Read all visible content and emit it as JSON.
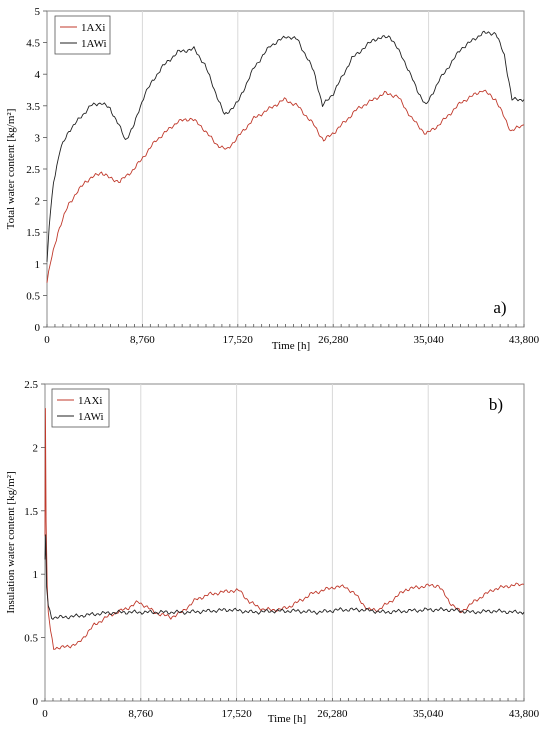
{
  "chart_data": [
    {
      "type": "line",
      "panel_label": "a)",
      "title": "",
      "xlabel": "Time [h]",
      "ylabel": "Total water content [kg/m²]",
      "xlim": [
        0,
        43800
      ],
      "ylim": [
        0,
        5
      ],
      "xticks": [
        0,
        8760,
        17520,
        26280,
        35040,
        43800
      ],
      "xtick_labels": [
        "0",
        "8,760",
        "17,520",
        "26,280",
        "35,040",
        "43,800"
      ],
      "yticks": [
        0,
        0.5,
        1,
        1.5,
        2,
        2.5,
        3,
        3.5,
        4,
        4.5,
        5
      ],
      "ytick_labels": [
        "0",
        "0.5",
        "1",
        "1.5",
        "2",
        "2.5",
        "3",
        "3.5",
        "4",
        "4.5",
        "5"
      ],
      "grid": "vertical",
      "legend_position": "top-left",
      "series": [
        {
          "name": "1AXi",
          "color": "#c0392b",
          "x": [
            0,
            300,
            1000,
            2000,
            3500,
            5000,
            5800,
            6700,
            8000,
            10000,
            12000,
            13300,
            14300,
            15500,
            16500,
            19000,
            21800,
            23000,
            24500,
            25400,
            26500,
            28500,
            31000,
            32200,
            33500,
            34800,
            36000,
            38000,
            40000,
            41200,
            42600,
            43800
          ],
          "y": [
            0.7,
            1.0,
            1.5,
            1.95,
            2.3,
            2.45,
            2.35,
            2.3,
            2.5,
            2.95,
            3.25,
            3.3,
            3.15,
            2.9,
            2.8,
            3.3,
            3.6,
            3.5,
            3.2,
            2.95,
            3.1,
            3.45,
            3.7,
            3.65,
            3.3,
            3.05,
            3.2,
            3.55,
            3.75,
            3.6,
            3.1,
            3.2
          ]
        },
        {
          "name": "1AWi",
          "color": "#222222",
          "x": [
            0,
            200,
            600,
            1200,
            2000,
            3000,
            4000,
            5000,
            5800,
            6600,
            7200,
            8000,
            9000,
            10500,
            12000,
            13500,
            14500,
            15500,
            16300,
            17500,
            19000,
            20500,
            22000,
            23000,
            24500,
            25300,
            26300,
            28000,
            30000,
            31500,
            32700,
            34000,
            34800,
            36000,
            38000,
            40000,
            41200,
            42000,
            42700,
            43800
          ],
          "y": [
            1.0,
            1.6,
            2.3,
            2.8,
            3.1,
            3.3,
            3.5,
            3.55,
            3.45,
            3.2,
            2.95,
            3.2,
            3.7,
            4.1,
            4.35,
            4.4,
            4.15,
            3.7,
            3.35,
            3.55,
            4.1,
            4.45,
            4.6,
            4.55,
            4.05,
            3.5,
            3.7,
            4.25,
            4.55,
            4.6,
            4.25,
            3.75,
            3.5,
            3.9,
            4.4,
            4.65,
            4.65,
            4.3,
            3.6,
            3.6
          ]
        }
      ]
    },
    {
      "type": "line",
      "panel_label": "b)",
      "title": "",
      "xlabel": "Time [h]",
      "ylabel": "Insulation water content [kg/m²]",
      "xlim": [
        0,
        43800
      ],
      "ylim": [
        0,
        2.5
      ],
      "xticks": [
        0,
        8760,
        17520,
        26280,
        35040,
        43800
      ],
      "xtick_labels": [
        "0",
        "8,760",
        "17,520",
        "26,280",
        "35,040",
        "43,800"
      ],
      "yticks": [
        0,
        0.5,
        1,
        1.5,
        2,
        2.5
      ],
      "ytick_labels": [
        "0",
        "0.5",
        "1",
        "1.5",
        "2",
        "2.5"
      ],
      "grid": "vertical",
      "legend_position": "top-left",
      "series": [
        {
          "name": "1AXi",
          "color": "#c0392b",
          "x": [
            0,
            40,
            100,
            200,
            300,
            500,
            800,
            1500,
            3000,
            4500,
            6000,
            7500,
            8500,
            9200,
            10000,
            11500,
            12500,
            13800,
            15000,
            17000,
            17800,
            18700,
            20000,
            21500,
            22500,
            24500,
            26500,
            27500,
            28500,
            29500,
            30500,
            31500,
            33000,
            35000,
            36000,
            37000,
            38000,
            39500,
            41000,
            42500,
            43800
          ],
          "y": [
            1.3,
            2.3,
            1.4,
            0.9,
            0.7,
            0.55,
            0.42,
            0.42,
            0.45,
            0.6,
            0.68,
            0.73,
            0.78,
            0.75,
            0.7,
            0.66,
            0.7,
            0.8,
            0.84,
            0.87,
            0.87,
            0.78,
            0.72,
            0.72,
            0.75,
            0.85,
            0.9,
            0.9,
            0.83,
            0.72,
            0.72,
            0.78,
            0.88,
            0.91,
            0.91,
            0.78,
            0.7,
            0.8,
            0.88,
            0.91,
            0.92
          ]
        },
        {
          "name": "1AWi",
          "color": "#222222",
          "x": [
            0,
            60,
            150,
            300,
            600,
            1500,
            3000,
            5000,
            7000,
            9000,
            11000,
            13000,
            15000,
            17000,
            19000,
            21000,
            23000,
            25000,
            27000,
            29000,
            31000,
            33000,
            35000,
            37000,
            39000,
            41000,
            43000,
            43800
          ],
          "y": [
            1.1,
            1.3,
            0.9,
            0.75,
            0.66,
            0.66,
            0.67,
            0.69,
            0.7,
            0.7,
            0.7,
            0.7,
            0.71,
            0.72,
            0.7,
            0.71,
            0.71,
            0.7,
            0.72,
            0.72,
            0.7,
            0.71,
            0.72,
            0.72,
            0.7,
            0.71,
            0.7,
            0.7
          ]
        }
      ]
    }
  ]
}
